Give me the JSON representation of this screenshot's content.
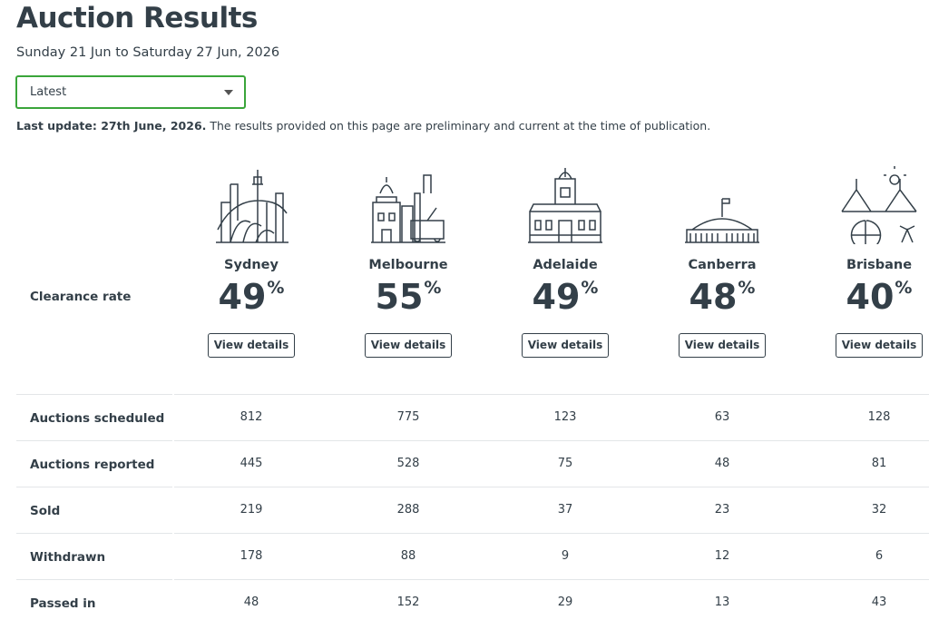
{
  "header": {
    "title": "Auction Results",
    "subtitle": "Sunday 21 Jun to Saturday 27 Jun, 2026",
    "dropdown": "Latest",
    "update_bold": "Last update: 27th June, 2026.",
    "update_text": "The results provided on this page are preliminary and current at the time of publication."
  },
  "table": {
    "clearance_label": "Clearance rate",
    "rate_unit": "%",
    "button_label": "View details",
    "cities": [
      {
        "name": "Sydney",
        "clearance_rate": 49
      },
      {
        "name": "Melbourne",
        "clearance_rate": 55
      },
      {
        "name": "Adelaide",
        "clearance_rate": 49
      },
      {
        "name": "Canberra",
        "clearance_rate": 48
      },
      {
        "name": "Brisbane",
        "clearance_rate": 40
      }
    ],
    "rows": [
      {
        "label": "Auctions scheduled",
        "values": [
          812,
          775,
          123,
          63,
          128
        ]
      },
      {
        "label": "Auctions reported",
        "values": [
          445,
          528,
          75,
          48,
          81
        ]
      },
      {
        "label": "Sold",
        "values": [
          219,
          288,
          37,
          23,
          32
        ]
      },
      {
        "label": "Withdrawn",
        "values": [
          178,
          88,
          9,
          12,
          6
        ]
      },
      {
        "label": "Passed in",
        "values": [
          48,
          152,
          29,
          13,
          43
        ]
      }
    ]
  }
}
